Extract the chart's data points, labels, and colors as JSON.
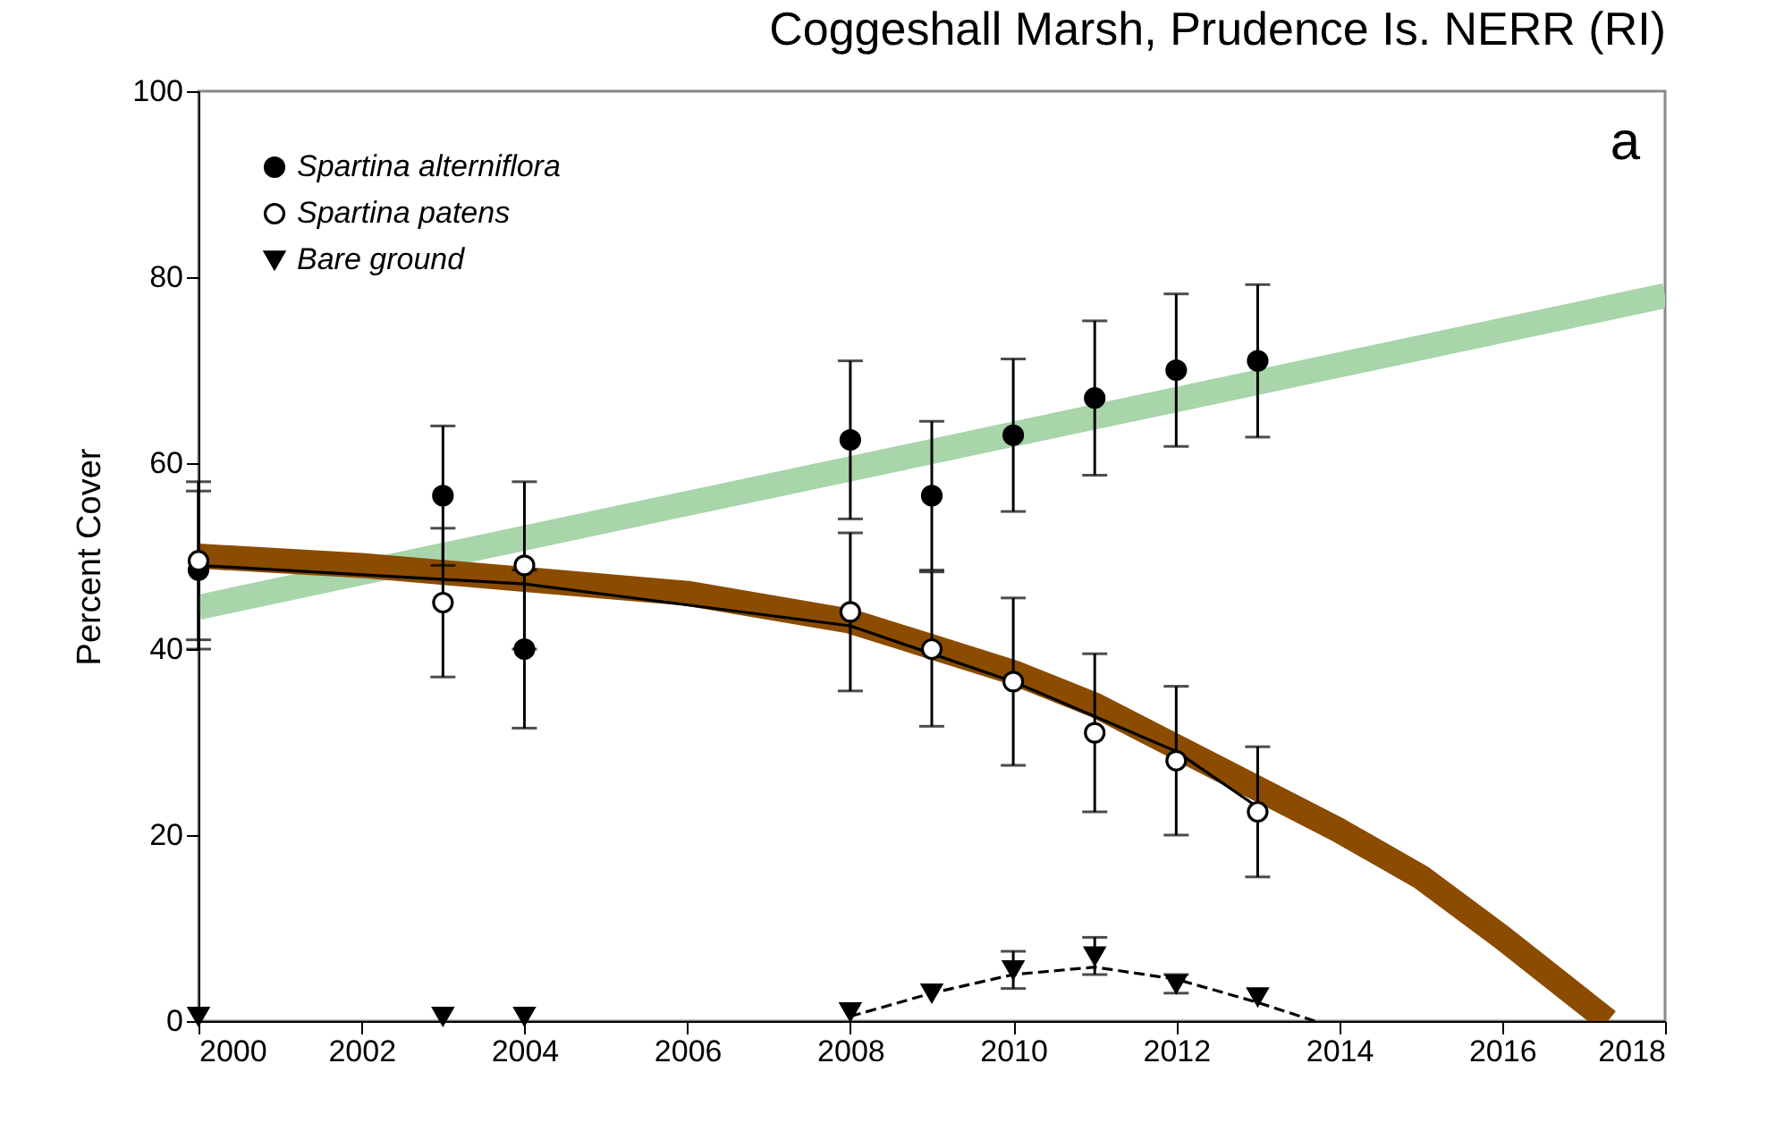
{
  "chart_data": {
    "type": "scatter",
    "title": "Coggeshall Marsh, Prudence Is. NERR (RI)",
    "ylabel": "Percent Cover",
    "annotations": [
      "a"
    ],
    "xlim": [
      2000,
      2018
    ],
    "xticks": [
      2000,
      2002,
      2004,
      2006,
      2008,
      2010,
      2012,
      2014,
      2016,
      2018
    ],
    "ylim": [
      0,
      100
    ],
    "yticks": [
      0,
      20,
      40,
      60,
      80,
      100
    ],
    "grid": false,
    "legend": "top left",
    "series": [
      {
        "name": "Spartina alterniflora",
        "marker": "circle",
        "color": "#000000",
        "x": [
          2000,
          2003,
          2004,
          2008,
          2009,
          2010,
          2011,
          2012,
          2013
        ],
        "values": [
          48.5,
          56.5,
          40,
          62.5,
          56.5,
          63,
          67,
          70,
          71
        ],
        "errors": [
          8.5,
          7.5,
          8.5,
          8.5,
          8,
          8.2,
          8.3,
          8.2,
          8.2
        ]
      },
      {
        "name": "Spartina patens",
        "marker": "circle",
        "color": "#ffffff",
        "x": [
          2000,
          2003,
          2004,
          2008,
          2009,
          2010,
          2011,
          2012,
          2013
        ],
        "values": [
          49.5,
          45,
          49,
          44,
          40,
          36.5,
          31,
          28,
          22.5
        ],
        "errors": [
          8.5,
          8,
          9,
          8.5,
          8.3,
          9,
          8.5,
          8,
          7
        ]
      },
      {
        "name": "Bare ground",
        "marker": "triangle",
        "color": "#000000",
        "x": [
          2000,
          2003,
          2004,
          2008,
          2009,
          2010,
          2011,
          2012,
          2013
        ],
        "values": [
          0.5,
          0.5,
          0.5,
          1,
          3,
          5.5,
          7,
          4,
          2.6
        ],
        "errors": [
          null,
          null,
          null,
          null,
          null,
          2,
          2,
          1,
          null
        ]
      },
      {
        "type": "line",
        "color": "#a8d5aa",
        "line_style": "solid",
        "x": [
          2000,
          2018
        ],
        "values": [
          44.5,
          78
        ]
      },
      {
        "type": "line",
        "color": "#8b4c00",
        "line_style": "solid",
        "x": [
          2000,
          2002,
          2004,
          2006,
          2008,
          2010,
          2011,
          2012,
          2013,
          2014,
          2015,
          2016,
          2017.3
        ],
        "values": [
          50,
          49,
          47.5,
          46,
          43,
          37.5,
          34,
          29.5,
          25,
          20.5,
          15.5,
          9,
          0
        ]
      },
      {
        "type": "line",
        "color": "#000000",
        "line_style": "solid",
        "x": [
          2000,
          2004,
          2008,
          2010,
          2012,
          2013
        ],
        "values": [
          49,
          47,
          42.5,
          36.5,
          29,
          23
        ]
      },
      {
        "type": "line",
        "color": "#000000",
        "line_style": "dashed",
        "x": [
          2008,
          2009,
          2010,
          2011,
          2012,
          2013,
          2013.7
        ],
        "values": [
          0.5,
          3,
          5,
          5.8,
          4.5,
          2,
          0
        ]
      }
    ]
  }
}
